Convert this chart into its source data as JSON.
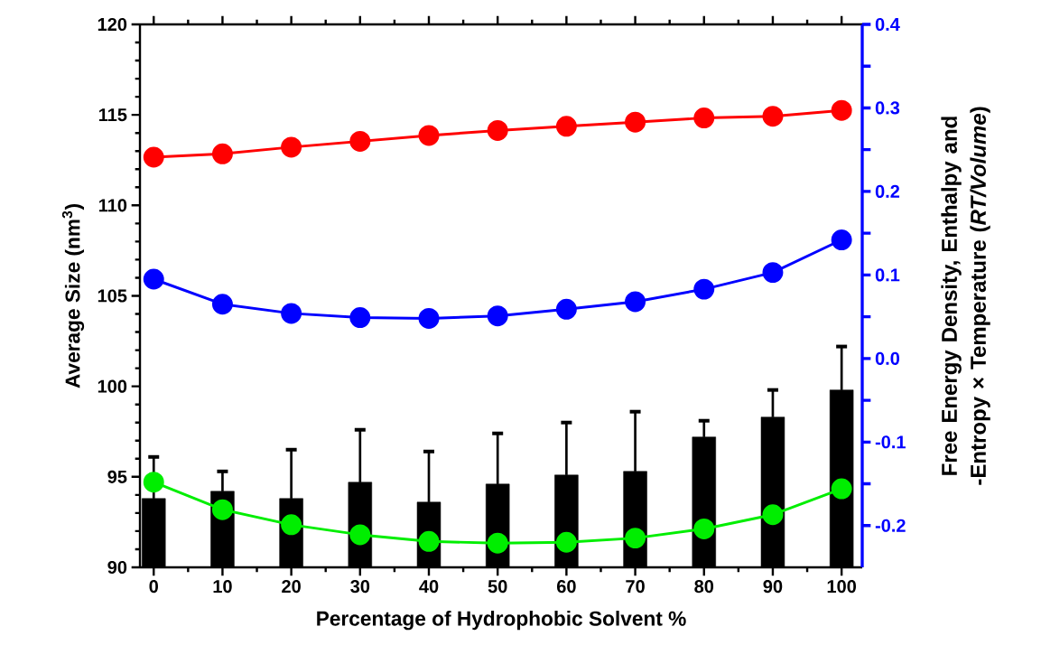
{
  "chart_data": {
    "type": "bar",
    "xlabel": "Percentage of Hydrophobic Solvent %",
    "ylabel": "Average Size (nm$^{3}$)",
    "y2label": "Free Energy Density, Enthalpy and -Entropy × Temperature (*RT/Volume*)",
    "x": [
      0,
      10,
      20,
      30,
      40,
      50,
      60,
      70,
      80,
      90,
      100
    ],
    "xlim": [
      -2,
      103
    ],
    "xticks": [
      0,
      10,
      20,
      30,
      40,
      50,
      60,
      70,
      80,
      90,
      100
    ],
    "ylim": [
      90,
      120
    ],
    "yticks": [
      90,
      95,
      100,
      105,
      110,
      115,
      120
    ],
    "y2lim": [
      -0.25,
      0.4
    ],
    "y2ticks": [
      {
        "value": -0.2,
        "label": "-0.2"
      },
      {
        "value": -0.1,
        "label": "-0.1"
      },
      {
        "value": 0,
        "label": "0.0"
      },
      {
        "value": 0.1,
        "label": "0.1"
      },
      {
        "value": 0.2,
        "label": "0.2"
      },
      {
        "value": 0.3,
        "label": "0.3"
      },
      {
        "value": 0.4,
        "label": "0.4"
      }
    ],
    "grid": false,
    "series": [
      {
        "color": "#000000",
        "values": [
          93.8,
          94.2,
          93.8,
          94.7,
          93.6,
          94.6,
          95.1,
          95.3,
          97.2,
          98.3,
          99.8
        ],
        "errors": [
          2.3,
          1.1,
          2.7,
          2.9,
          2.8,
          2.8,
          2.9,
          3.3,
          0.9,
          1.5,
          2.4
        ]
      },
      {
        "type": "line",
        "axis": "y2",
        "color": "#ff0000",
        "marker": "circle",
        "line_style": "solid",
        "values": [
          0.241,
          0.245,
          0.253,
          0.26,
          0.267,
          0.273,
          0.278,
          0.283,
          0.288,
          0.29,
          0.297
        ]
      },
      {
        "type": "line",
        "axis": "y2",
        "color": "#0000ff",
        "marker": "circle",
        "line_style": "solid",
        "values": [
          0.095,
          0.065,
          0.054,
          0.049,
          0.048,
          0.051,
          0.059,
          0.068,
          0.083,
          0.103,
          0.142
        ]
      },
      {
        "type": "line",
        "axis": "y2",
        "color": "#00ee00",
        "marker": "circle",
        "line_style": "solid",
        "values": [
          -0.148,
          -0.181,
          -0.199,
          -0.211,
          -0.219,
          -0.221,
          -0.22,
          -0.215,
          -0.204,
          -0.187,
          -0.156
        ]
      }
    ]
  }
}
